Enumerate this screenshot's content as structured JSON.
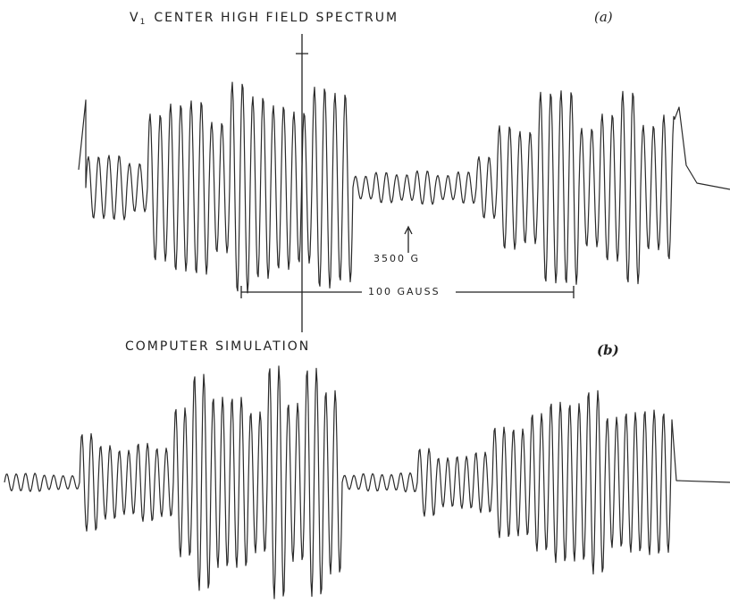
{
  "figure": {
    "top": {
      "title": {
        "symbol": "V",
        "subscript": "1",
        "text": "CENTER  HIGH  FIELD  SPECTRUM"
      },
      "panel": "(a)",
      "marker": "3500 G",
      "scale": "100  GAUSS"
    },
    "bottom": {
      "title": "COMPUTER    SIMULATION",
      "panel": "(b)"
    }
  }
}
